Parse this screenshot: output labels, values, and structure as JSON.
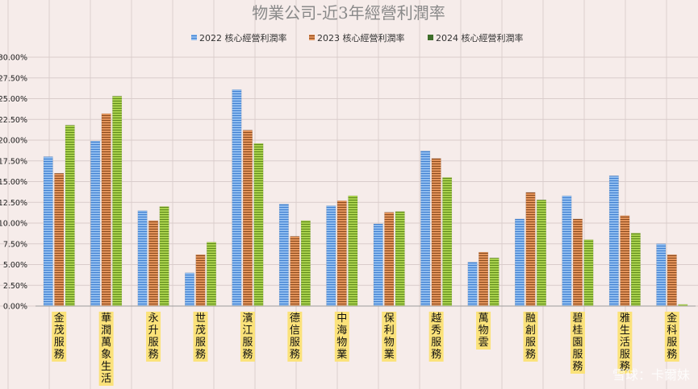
{
  "chart_data": {
    "type": "bar",
    "title": "物業公司-近3年經營利潤率",
    "categories": [
      "金茂服務",
      "華潤萬象生活",
      "永升服務",
      "世茂服務",
      "濱江服務",
      "德信服務",
      "中海物業",
      "保利物業",
      "越秀服務",
      "萬物雲",
      "融創服務",
      "碧桂園服務",
      "雅生活服務",
      "金科服務"
    ],
    "series": [
      {
        "name": "2022 核心經營利潤率",
        "color": "#6fa6e3",
        "values": [
          18.0,
          19.9,
          11.5,
          4.0,
          26.1,
          12.3,
          12.1,
          9.9,
          18.7,
          5.3,
          10.5,
          13.3,
          15.7,
          7.5
        ]
      },
      {
        "name": "2023 核心經營利潤率",
        "color": "#d9803f",
        "values": [
          16.0,
          23.2,
          10.3,
          6.2,
          21.2,
          8.4,
          12.7,
          11.3,
          17.8,
          6.5,
          13.7,
          10.5,
          10.9,
          6.2
        ]
      },
      {
        "name": "2024 核心經營利潤率",
        "color": "#96c23c",
        "values": [
          21.8,
          25.3,
          12.0,
          7.7,
          19.6,
          10.3,
          13.3,
          11.4,
          15.5,
          5.8,
          12.8,
          8.0,
          8.8,
          0.2
        ]
      }
    ],
    "ylim": [
      0,
      30
    ],
    "yticks": [
      "0.00%",
      "2.50%",
      "5.00%",
      "7.50%",
      "10.00%",
      "12.50%",
      "15.00%",
      "17.50%",
      "20.00%",
      "22.50%",
      "25.00%",
      "27.50%",
      "30.00%"
    ],
    "legend_position": "top",
    "grid": true,
    "watermark": "雪球：卡爾妹"
  }
}
